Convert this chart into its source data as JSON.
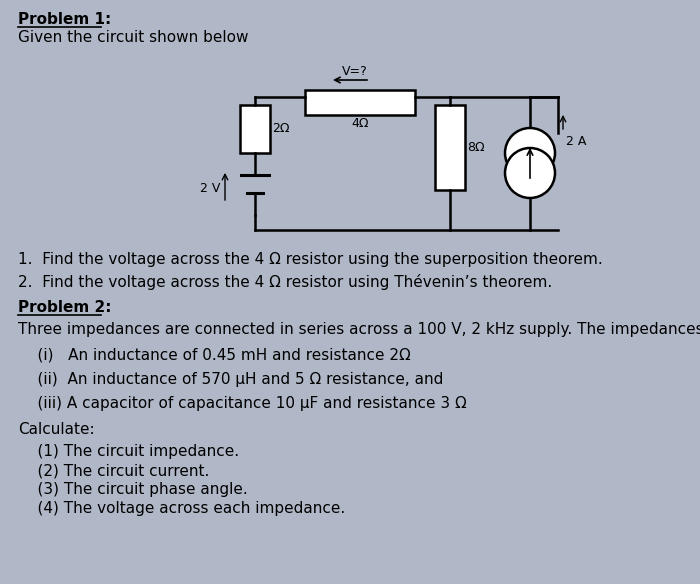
{
  "background_color": "#b0b8c8",
  "paper_color": "#d8dde8",
  "title1": "Problem 1:",
  "subtitle1": "Given the circuit shown below",
  "problem1_q1": "1.  Find the voltage across the 4 Ω resistor using the superposition theorem.",
  "problem1_q2": "2.  Find the voltage across the 4 Ω resistor using Thévenin’s theorem.",
  "title2": "Problem 2:",
  "problem2_intro": "Three impedances are connected in series across a 100 V, 2 kHz supply. The impedances contain:",
  "p2_i": "    (i)   An inductance of 0.45 mH and resistance 2Ω",
  "p2_ii": "    (ii)  An inductance of 570 μH and 5 Ω resistance, and",
  "p2_iii": "    (iii) A capacitor of capacitance 10 μF and resistance 3 Ω",
  "calculate": "Calculate:",
  "calc1": "    (1) The circuit impedance.",
  "calc2": "    (2) The circuit current.",
  "calc3": "    (3) The circuit phase angle.",
  "calc4": "    (4) The voltage across each impedance."
}
